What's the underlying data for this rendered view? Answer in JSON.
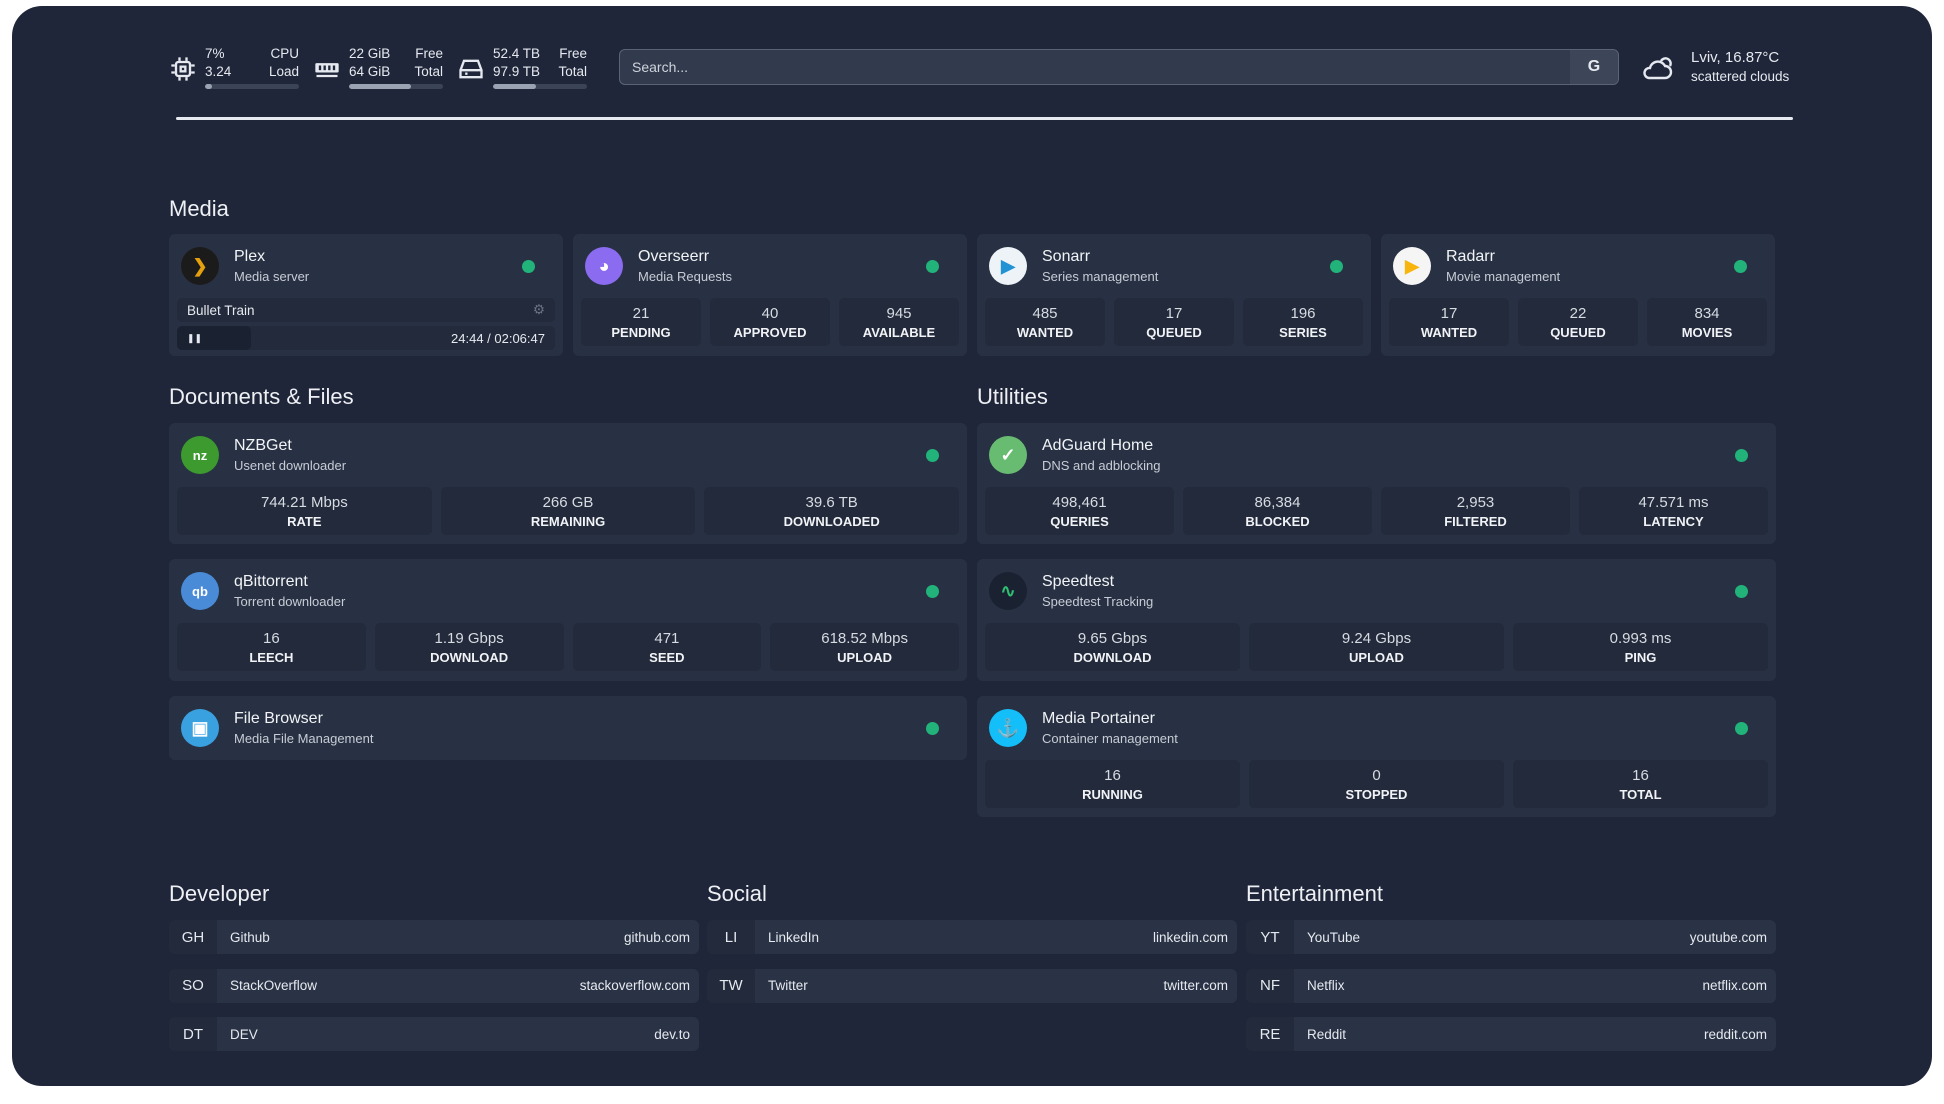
{
  "header": {
    "cpu": {
      "icon": "cpu-icon",
      "value": "7%",
      "load": "3.24",
      "label1": "CPU",
      "label2": "Load",
      "percent": 7
    },
    "memory": {
      "icon": "memory-icon",
      "free": "22 GiB",
      "total": "64 GiB",
      "label1": "Free",
      "label2": "Total",
      "percent": 66
    },
    "disk": {
      "icon": "disk-icon",
      "free": "52.4 TB",
      "total": "97.9 TB",
      "label1": "Free",
      "label2": "Total",
      "percent": 46
    },
    "search": {
      "placeholder": "Search...",
      "button": "G"
    },
    "weather": {
      "icon": "cloud-icon",
      "location": "Lviv, 16.87°C",
      "condition": "scattered clouds"
    }
  },
  "colors": {
    "background": "#1f2639",
    "card": "#283143",
    "status": "#21b37a"
  },
  "sections": {
    "media": "Media",
    "docs": "Documents & Files",
    "utilities": "Utilities",
    "developer": "Developer",
    "social": "Social",
    "entertainment": "Entertainment"
  },
  "media": [
    {
      "name": "Plex",
      "desc": "Media server",
      "icon": "plex-icon",
      "nowplaying": {
        "title": "Bullet Train",
        "time": "24:44 / 02:06:47",
        "progress": 19.5
      }
    },
    {
      "name": "Overseerr",
      "desc": "Media Requests",
      "icon": "overseerr-icon",
      "stats": [
        {
          "v": "21",
          "l": "PENDING"
        },
        {
          "v": "40",
          "l": "APPROVED"
        },
        {
          "v": "945",
          "l": "AVAILABLE"
        }
      ]
    },
    {
      "name": "Sonarr",
      "desc": "Series management",
      "icon": "sonarr-icon",
      "stats": [
        {
          "v": "485",
          "l": "WANTED"
        },
        {
          "v": "17",
          "l": "QUEUED"
        },
        {
          "v": "196",
          "l": "SERIES"
        }
      ]
    },
    {
      "name": "Radarr",
      "desc": "Movie management",
      "icon": "radarr-icon",
      "stats": [
        {
          "v": "17",
          "l": "WANTED"
        },
        {
          "v": "22",
          "l": "QUEUED"
        },
        {
          "v": "834",
          "l": "MOVIES"
        }
      ]
    }
  ],
  "docs": [
    {
      "name": "NZBGet",
      "desc": "Usenet downloader",
      "icon": "nzbget-icon",
      "stats": [
        {
          "v": "744.21 Mbps",
          "l": "RATE"
        },
        {
          "v": "266 GB",
          "l": "REMAINING"
        },
        {
          "v": "39.6 TB",
          "l": "DOWNLOADED"
        }
      ]
    },
    {
      "name": "qBittorrent",
      "desc": "Torrent downloader",
      "icon": "qbittorrent-icon",
      "stats": [
        {
          "v": "16",
          "l": "LEECH"
        },
        {
          "v": "1.19 Gbps",
          "l": "DOWNLOAD"
        },
        {
          "v": "471",
          "l": "SEED"
        },
        {
          "v": "618.52 Mbps",
          "l": "UPLOAD"
        }
      ]
    },
    {
      "name": "File Browser",
      "desc": "Media File Management",
      "icon": "filebrowser-icon"
    }
  ],
  "utilities": [
    {
      "name": "AdGuard Home",
      "desc": "DNS and adblocking",
      "icon": "adguard-icon",
      "stats": [
        {
          "v": "498,461",
          "l": "QUERIES"
        },
        {
          "v": "86,384",
          "l": "BLOCKED"
        },
        {
          "v": "2,953",
          "l": "FILTERED"
        },
        {
          "v": "47.571 ms",
          "l": "LATENCY"
        }
      ]
    },
    {
      "name": "Speedtest",
      "desc": "Speedtest Tracking",
      "icon": "speedtest-icon",
      "stats": [
        {
          "v": "9.65 Gbps",
          "l": "DOWNLOAD"
        },
        {
          "v": "9.24 Gbps",
          "l": "UPLOAD"
        },
        {
          "v": "0.993 ms",
          "l": "PING"
        }
      ]
    },
    {
      "name": "Media Portainer",
      "desc": "Container management",
      "icon": "portainer-icon",
      "stats": [
        {
          "v": "16",
          "l": "RUNNING"
        },
        {
          "v": "0",
          "l": "STOPPED"
        },
        {
          "v": "16",
          "l": "TOTAL"
        }
      ]
    }
  ],
  "bookmarks": {
    "developer": [
      {
        "abbr": "GH",
        "name": "Github",
        "url": "github.com"
      },
      {
        "abbr": "SO",
        "name": "StackOverflow",
        "url": "stackoverflow.com"
      },
      {
        "abbr": "DT",
        "name": "DEV",
        "url": "dev.to"
      }
    ],
    "social": [
      {
        "abbr": "LI",
        "name": "LinkedIn",
        "url": "linkedin.com"
      },
      {
        "abbr": "TW",
        "name": "Twitter",
        "url": "twitter.com"
      }
    ],
    "entertainment": [
      {
        "abbr": "YT",
        "name": "YouTube",
        "url": "youtube.com"
      },
      {
        "abbr": "NF",
        "name": "Netflix",
        "url": "netflix.com"
      },
      {
        "abbr": "RE",
        "name": "Reddit",
        "url": "reddit.com"
      }
    ]
  }
}
